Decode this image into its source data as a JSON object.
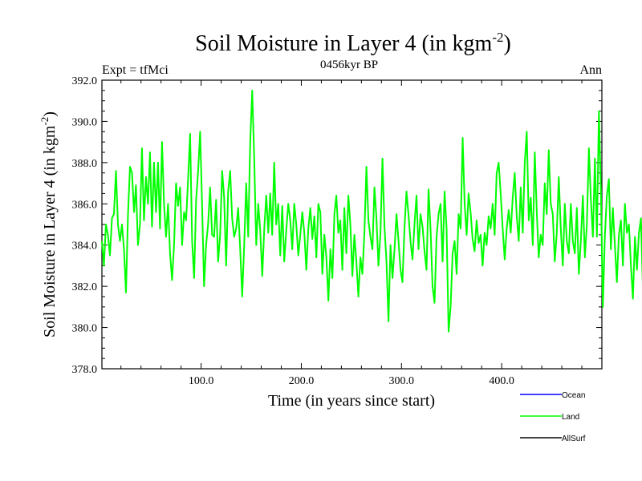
{
  "chart_data": {
    "type": "line",
    "title_main": "Soil Moisture in Layer 4 (in kgm",
    "title_sup": "-2",
    "title_close": ")",
    "subtitle": "0456kyr BP",
    "left_label": "Expt = tfMci",
    "right_label": "Ann",
    "xlabel": "Time (in years since start)",
    "ylabel_main": "Soil Moisture in Layer 4 (in kgm",
    "ylabel_sup": "-2",
    "ylabel_close": ")",
    "xlim": [
      1,
      500
    ],
    "ylim": [
      378,
      392
    ],
    "x_ticks": [
      100,
      200,
      300,
      400
    ],
    "x_tick_labels": [
      "100.0",
      "200.0",
      "300.0",
      "400.0"
    ],
    "y_ticks": [
      378,
      380,
      382,
      384,
      386,
      388,
      390,
      392
    ],
    "y_tick_labels": [
      "378.0",
      "380.0",
      "382.0",
      "384.0",
      "386.0",
      "388.0",
      "390.0",
      "392.0"
    ],
    "legend": [
      {
        "name": "Ocean",
        "color": "#0000ff"
      },
      {
        "name": "Land",
        "color": "#00ff00"
      },
      {
        "name": "AllSurf",
        "color": "#000000"
      }
    ],
    "series": [
      {
        "name": "Land",
        "color": "#00ff00",
        "x_start": 1,
        "x_step": 2,
        "values": [
          384.2,
          383.0,
          385.0,
          384.5,
          383.5,
          385.3,
          385.5,
          387.6,
          385.0,
          384.2,
          385.0,
          383.8,
          381.7,
          385.5,
          387.8,
          387.5,
          385.6,
          386.9,
          384.0,
          385.0,
          388.7,
          385.2,
          387.3,
          386.0,
          388.5,
          384.9,
          388.0,
          385.6,
          388.0,
          384.8,
          389.0,
          386.0,
          384.4,
          386.0,
          383.6,
          382.3,
          384.0,
          387.0,
          385.9,
          386.8,
          384.0,
          385.6,
          385.2,
          387.2,
          389.4,
          384.2,
          382.4,
          386.2,
          387.6,
          389.5,
          386.0,
          382.0,
          384.0,
          385.0,
          386.8,
          384.5,
          384.4,
          386.2,
          383.2,
          384.5,
          387.6,
          386.3,
          383.0,
          386.6,
          387.6,
          385.3,
          384.4,
          384.8,
          385.8,
          383.8,
          381.5,
          384.0,
          387.0,
          384.4,
          389.0,
          391.5,
          388.2,
          384.0,
          386.0,
          384.7,
          382.5,
          384.8,
          386.4,
          384.6,
          386.5,
          384.5,
          388.0,
          385.0,
          386.0,
          383.5,
          385.9,
          383.2,
          384.7,
          386.0,
          385.2,
          383.8,
          386.0,
          385.0,
          383.5,
          384.5,
          385.6,
          384.6,
          382.8,
          384.8,
          385.8,
          384.3,
          385.4,
          383.4,
          386.0,
          385.6,
          382.6,
          384.5,
          383.4,
          381.3,
          383.8,
          382.4,
          385.5,
          386.4,
          384.6,
          385.2,
          382.8,
          385.8,
          383.6,
          386.4,
          385.0,
          382.5,
          384.5,
          383.2,
          381.5,
          383.4,
          382.6,
          384.6,
          387.8,
          385.2,
          384.4,
          383.8,
          386.8,
          385.3,
          383.0,
          384.6,
          388.2,
          384.9,
          383.2,
          380.3,
          384.0,
          382.4,
          383.8,
          385.5,
          384.2,
          382.8,
          382.2,
          384.8,
          386.6,
          385.5,
          384.2,
          383.3,
          385.0,
          386.4,
          383.8,
          385.5,
          384.9,
          383.7,
          382.8,
          386.7,
          384.8,
          382.0,
          381.2,
          384.4,
          385.5,
          386.0,
          383.2,
          386.6,
          384.8,
          379.8,
          381.0,
          383.6,
          384.2,
          382.6,
          385.5,
          384.8,
          389.2,
          386.0,
          384.5,
          386.5,
          385.6,
          384.3,
          383.7,
          385.2,
          384.1,
          384.5,
          383.0,
          384.6,
          384.0,
          385.4,
          384.8,
          386.0,
          384.5,
          387.5,
          388.0,
          386.5,
          384.8,
          383.3,
          384.8,
          385.7,
          384.6,
          386.3,
          387.5,
          385.4,
          384.2,
          386.8,
          384.6,
          388.0,
          389.5,
          385.2,
          386.3,
          384.0,
          388.5,
          385.7,
          383.4,
          384.5,
          384.0,
          387.0,
          385.5,
          388.6,
          386.0,
          385.5,
          383.2,
          384.6,
          387.3,
          384.8,
          383.0,
          386.0,
          384.2,
          383.6,
          386.0,
          384.2,
          383.6,
          385.8,
          382.6,
          384.2,
          386.4,
          383.4,
          385.0,
          388.7,
          386.2,
          384.4,
          388.2,
          384.4,
          390.5,
          386.6,
          381.0,
          384.4,
          386.4,
          387.2,
          383.8,
          385.8,
          384.0,
          382.2,
          384.5,
          385.2,
          383.0,
          386.0,
          384.6,
          385.0,
          383.0,
          381.4,
          384.4,
          382.8,
          384.6,
          385.3,
          381.8,
          384.6,
          385.8,
          387.2,
          385.6,
          383.8
        ]
      }
    ]
  }
}
